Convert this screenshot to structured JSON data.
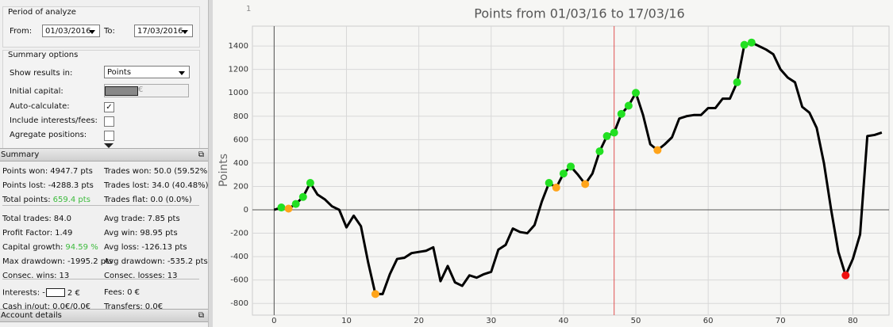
{
  "period": {
    "title": "Period of analyze",
    "from_label": "From:",
    "from": "01/03/2016",
    "to_label": "To:",
    "to": "17/03/2016"
  },
  "options": {
    "title": "Summary options",
    "show_label": "Show results in:",
    "show_value": "Points",
    "capital_label": "Initial capital:",
    "capital_suffix": "€",
    "checks": [
      {
        "label": "Auto-calculate:",
        "checked": true
      },
      {
        "label": "Include interests/fees:",
        "checked": false
      },
      {
        "label": "Agregate positions:",
        "checked": false
      }
    ]
  },
  "summary": {
    "title": "Summary",
    "groups": [
      [
        [
          {
            "label": "Points won:",
            "value": "4947.7 pts"
          },
          {
            "label": "Trades won:",
            "value": "50.0 (59.52%)"
          }
        ],
        [
          {
            "label": "Points lost:",
            "value": "-4288.3 pts"
          },
          {
            "label": "Trades lost:",
            "value": "34.0 (40.48%)"
          }
        ],
        [
          {
            "label": "Total points:",
            "value": "659.4 pts",
            "highlight": true
          },
          {
            "label": "Trades flat:",
            "value": "0.0 (0.0%)"
          }
        ]
      ],
      [
        [
          {
            "label": "Total trades:",
            "value": "84.0"
          },
          {
            "label": "Avg trade:",
            "value": "7.85 pts"
          }
        ],
        [
          {
            "label": "Profit Factor:",
            "value": "1.49"
          },
          {
            "label": "Avg win:",
            "value": "98.95 pts"
          }
        ],
        [
          {
            "label": "Capital growth:",
            "value": "94.59 %",
            "highlight": true
          },
          {
            "label": "Avg loss:",
            "value": "-126.13 pts"
          }
        ],
        [
          {
            "label": "Max drawdown:",
            "value": "-1995.2 pts"
          },
          {
            "label": "Avg drawdown:",
            "value": "-535.2 pts"
          }
        ],
        [
          {
            "label": "Consec. wins:",
            "value": "13"
          },
          {
            "label": "Consec. losses:",
            "value": "13"
          }
        ]
      ],
      [
        [
          {
            "label": "Interests: -",
            "value": "2 €",
            "redacted": true
          },
          {
            "label": "Fees:",
            "value": "0 €"
          }
        ],
        [
          {
            "label": "Cash in/out:",
            "value": "0.0€/0.0€"
          },
          {
            "label": "Transfers:",
            "value": "0.0€"
          }
        ]
      ]
    ]
  },
  "account": {
    "title": "Account details"
  },
  "chart_data": {
    "type": "line",
    "title": "Points from 01/03/16 to 17/03/16",
    "y_label": "Points",
    "corner_label": "1",
    "x": [
      0,
      1,
      2,
      3,
      4,
      5,
      6,
      7,
      8,
      9,
      10,
      11,
      12,
      13,
      14,
      15,
      16,
      17,
      18,
      19,
      20,
      21,
      22,
      23,
      24,
      25,
      26,
      27,
      28,
      29,
      30,
      31,
      32,
      33,
      34,
      35,
      36,
      37,
      38,
      39,
      40,
      41,
      42,
      43,
      44,
      45,
      46,
      47,
      48,
      49,
      50,
      51,
      52,
      53,
      54,
      55,
      56,
      57,
      58,
      59,
      60,
      61,
      62,
      63,
      64,
      65,
      66,
      67,
      68,
      69,
      70,
      71,
      72,
      73,
      74,
      75,
      76,
      77,
      78,
      79,
      80,
      81,
      82,
      83,
      84
    ],
    "series": [
      {
        "color": "#000000",
        "values": [
          0,
          20,
          10,
          50,
          110,
          230,
          130,
          90,
          30,
          0,
          -150,
          -50,
          -140,
          -450,
          -720,
          -720,
          -550,
          -420,
          -410,
          -370,
          -360,
          -350,
          -320,
          -610,
          -480,
          -620,
          -650,
          -560,
          -580,
          -550,
          -530,
          -340,
          -300,
          -160,
          -190,
          -200,
          -130,
          70,
          230,
          190,
          310,
          370,
          300,
          220,
          310,
          500,
          630,
          660,
          820,
          890,
          1000,
          810,
          560,
          510,
          560,
          620,
          780,
          800,
          810,
          810,
          870,
          870,
          950,
          950,
          1090,
          1410,
          1430,
          1400,
          1370,
          1330,
          1200,
          1130,
          1090,
          880,
          830,
          700,
          400,
          0,
          -360,
          -560,
          -420,
          -210,
          630,
          640,
          660
        ]
      }
    ],
    "markers": [
      {
        "x": [
          1,
          3,
          4,
          5,
          38,
          40,
          41,
          45,
          46,
          47,
          48,
          49,
          50,
          64,
          65,
          66
        ],
        "color": "#22e022"
      },
      {
        "x": [
          2,
          14,
          39,
          43,
          53
        ],
        "color": "#ffa41a"
      },
      {
        "x": [
          79
        ],
        "color": "#ee1111"
      }
    ],
    "marker_line_x": 47,
    "marker_line_color": "#e05050",
    "xlim": [
      -3,
      85
    ],
    "ylim": [
      -900,
      1570
    ],
    "xticks": [
      0,
      10,
      20,
      30,
      40,
      50,
      60,
      70,
      80
    ],
    "yticks": [
      -800,
      -600,
      -400,
      -200,
      0,
      200,
      400,
      600,
      800,
      1000,
      1200,
      1400
    ],
    "grid": true
  }
}
